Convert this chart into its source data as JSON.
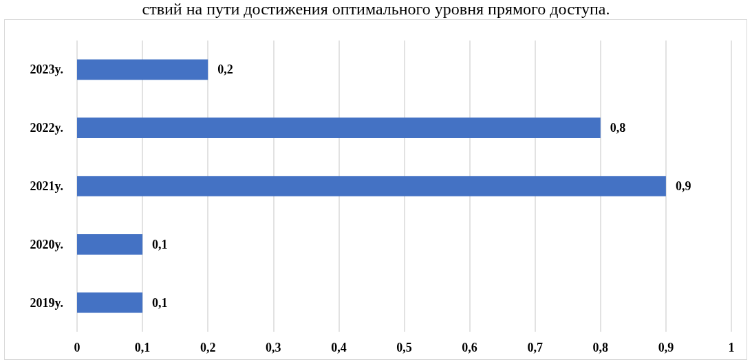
{
  "chart_data": {
    "type": "bar",
    "orientation": "horizontal",
    "title": "ствий на пути достижения оптимального уровня прямого доступа.",
    "categories": [
      "2023y.",
      "2022y.",
      "2021y.",
      "2020y.",
      "2019y."
    ],
    "values": [
      0.2,
      0.8,
      0.9,
      0.1,
      0.1
    ],
    "value_labels": [
      "0,2",
      "0,8",
      "0,9",
      "0,1",
      "0,1"
    ],
    "color": "#4472c4",
    "xlim": [
      0,
      1
    ],
    "xticks": [
      0,
      {
        "value": 0.1,
        "label": "0,1"
      },
      {
        "value": 0.2,
        "label": "0,2"
      },
      {
        "value": 0.3,
        "label": "0,3"
      },
      {
        "value": 0.4,
        "label": "0,4"
      },
      {
        "value": 0.5,
        "label": "0,5"
      },
      {
        "value": 0.6,
        "label": "0,6"
      },
      {
        "value": 0.7,
        "label": "0,7"
      },
      {
        "value": 0.8,
        "label": "0,8"
      },
      {
        "value": 0.9,
        "label": "0,9"
      },
      1
    ],
    "grid": "x"
  }
}
